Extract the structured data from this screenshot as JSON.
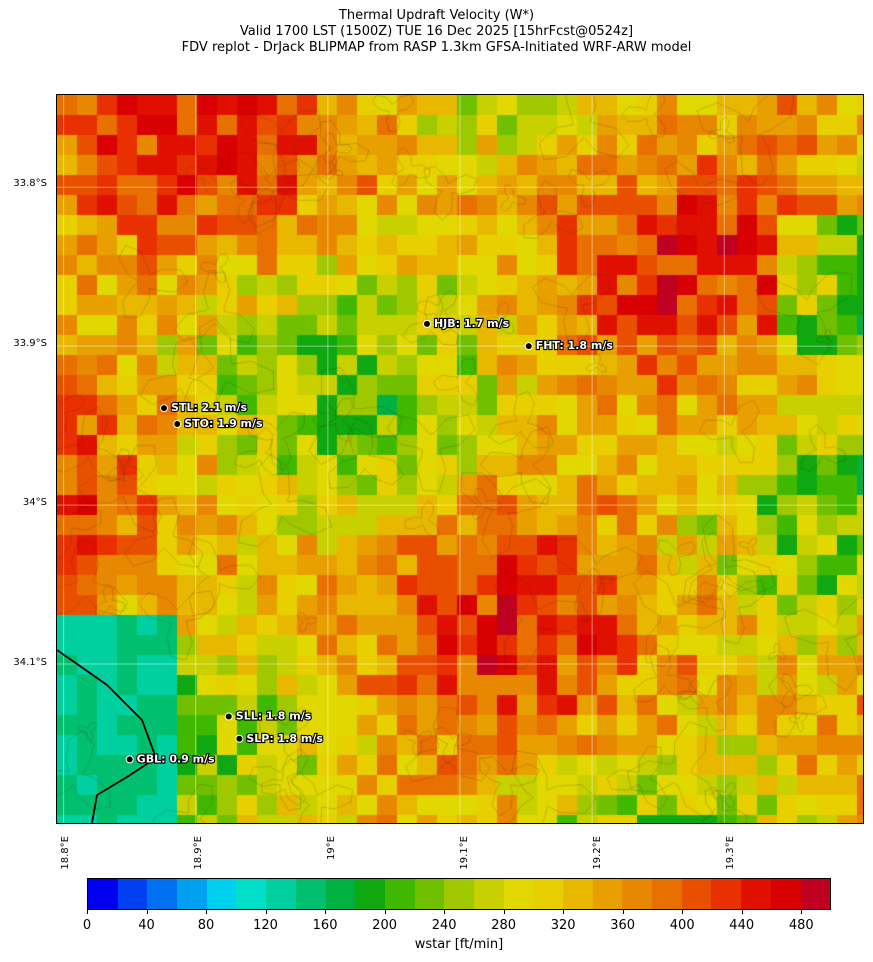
{
  "title": {
    "line1": "Thermal Updraft Velocity (W*)",
    "line2": "Valid 1700 LST (1500Z) TUE 16 Dec 2025 [15hrFcst@0524z]",
    "line3": "FDV replot - DrJack BLIPMAP from RASP 1.3km GFSA-Initiated WRF-ARW model"
  },
  "lat_labels": [
    "33.8°S",
    "33.9°S",
    "34°S",
    "34.1°S"
  ],
  "lon_labels": [
    "18.8°E",
    "18.9°E",
    "19°E",
    "19.1°E",
    "19.2°E",
    "19.3°E"
  ],
  "stations": [
    {
      "label": "HJB: 1.7 m/s",
      "lon": 19.075,
      "lat": -33.886
    },
    {
      "label": "FHT: 1.8 m/s",
      "lon": 19.152,
      "lat": -33.9
    },
    {
      "label": "STL: 2.1 m/s",
      "lon": 18.876,
      "lat": -33.939
    },
    {
      "label": "STO: 1.9 m/s",
      "lon": 18.886,
      "lat": -33.949
    },
    {
      "label": "SLL: 1.8 m/s",
      "lon": 18.925,
      "lat": -34.133
    },
    {
      "label": "SLP: 1.8 m/s",
      "lon": 18.933,
      "lat": -34.147
    },
    {
      "label": "GBL: 0.9 m/s",
      "lon": 18.85,
      "lat": -34.16
    }
  ],
  "colorbar": {
    "label": "wstar [ft/min]",
    "ticks": [
      "0",
      "40",
      "80",
      "120",
      "160",
      "200",
      "240",
      "280",
      "320",
      "360",
      "400",
      "440",
      "480"
    ],
    "min": 0,
    "max": 500,
    "colors": [
      "#0000f0",
      "#0040f0",
      "#0070f0",
      "#00a0f0",
      "#00d0f0",
      "#00e0c8",
      "#00d0a0",
      "#00c070",
      "#00b040",
      "#10a810",
      "#40b800",
      "#70c000",
      "#a0c800",
      "#c8d000",
      "#e0d800",
      "#e8d000",
      "#e8b800",
      "#e8a000",
      "#e88800",
      "#e87000",
      "#e85000",
      "#e83000",
      "#e01000",
      "#d80000",
      "#c00020"
    ]
  },
  "map": {
    "lon_range": [
      18.795,
      19.405
    ],
    "lat_range": [
      -34.2,
      -33.742
    ],
    "coastline": "black line along lower-left (False Bay)"
  }
}
